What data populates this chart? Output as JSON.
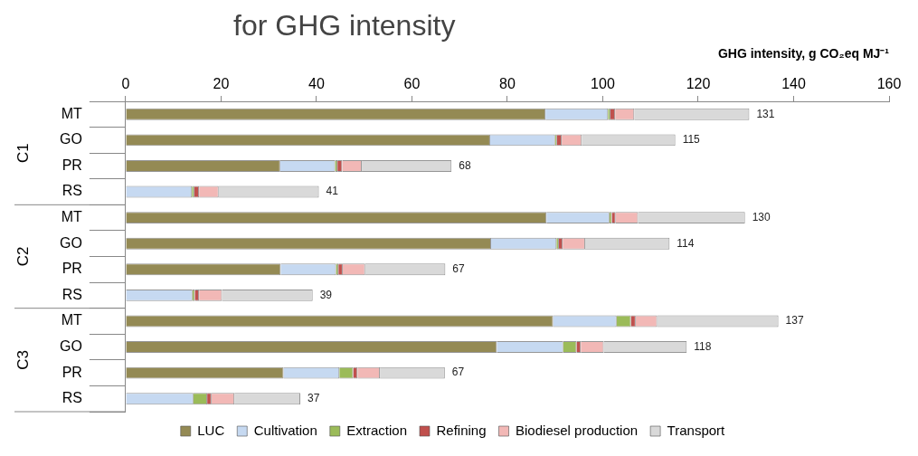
{
  "chart_data": {
    "type": "bar",
    "orientation": "horizontal",
    "stacked": true,
    "title": "for GHG intensity",
    "xlabel": "GHG intensity, g CO₂eq MJ⁻¹",
    "categories": [
      "MT",
      "GO",
      "PR",
      "RS",
      "MT",
      "GO",
      "PR",
      "RS",
      "MT",
      "GO",
      "PR",
      "RS"
    ],
    "annotations": [
      "C1",
      "C2",
      "C3"
    ],
    "xlim": [
      0,
      160
    ],
    "xticks": [
      0,
      20,
      40,
      60,
      80,
      100,
      120,
      140,
      160
    ],
    "grid": false,
    "legend": "bottom",
    "series": [
      {
        "name": "LUC",
        "color": "#948a54",
        "values": [
          88.0,
          76.4,
          32.4,
          0,
          88.2,
          76.6,
          32.5,
          0,
          89.6,
          77.8,
          33.1,
          0
        ]
      },
      {
        "name": "Cultivation",
        "color": "#c6d9f1",
        "values": [
          13.1,
          13.6,
          11.5,
          13.9,
          13.2,
          13.7,
          11.6,
          14.0,
          13.3,
          13.9,
          11.7,
          14.2
        ]
      },
      {
        "name": "Extraction",
        "color": "#9bbb59",
        "values": [
          0.5,
          0.4,
          0.5,
          0.5,
          0.5,
          0.5,
          0.5,
          0.5,
          3.0,
          2.8,
          2.9,
          2.9
        ]
      },
      {
        "name": "Refining",
        "color": "#c0504d",
        "values": [
          1.0,
          1.0,
          1.0,
          1.0,
          0.8,
          0.8,
          0.9,
          0.9,
          1.0,
          0.9,
          0.9,
          0.9
        ]
      },
      {
        "name": "Biodiesel production",
        "color": "#f2b8b6",
        "values": [
          4.0,
          4.2,
          4.1,
          4.1,
          4.7,
          4.7,
          4.7,
          4.8,
          4.5,
          4.8,
          4.7,
          4.8
        ]
      },
      {
        "name": "Transport",
        "color": "#d9d9d9",
        "values": [
          24.1,
          19.6,
          18.8,
          21.0,
          22.4,
          17.7,
          16.8,
          19.0,
          25.4,
          17.4,
          13.6,
          13.8
        ]
      }
    ],
    "totals": [
      "131",
      "115",
      "68",
      "41",
      "130",
      "114",
      "67",
      "39",
      "137",
      "118",
      "67",
      "37"
    ]
  }
}
